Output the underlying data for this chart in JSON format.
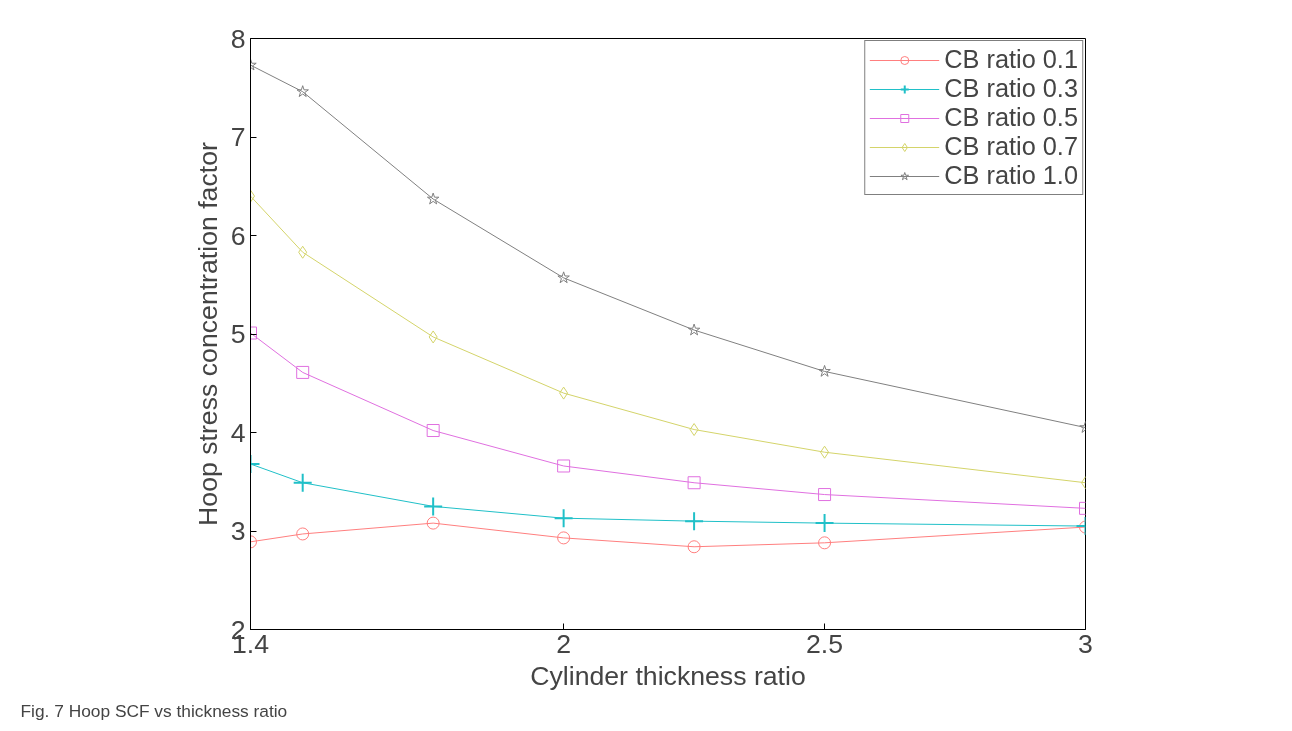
{
  "chart_data": {
    "type": "line",
    "xlabel": "Cylinder thickness ratio",
    "ylabel": "Hoop stress concentration factor",
    "x": [
      1.4,
      1.5,
      1.75,
      2.0,
      2.25,
      2.5,
      3.0
    ],
    "xlim": [
      1.4,
      3
    ],
    "xticks": [
      1.4,
      2,
      2.5,
      3
    ],
    "ylim": [
      2,
      8
    ],
    "yticks": [
      2,
      3,
      4,
      5,
      6,
      7,
      8
    ],
    "grid": false,
    "legend": "top right",
    "line_style": "solid",
    "series": [
      {
        "name": "CB ratio 0.1",
        "color": "#ff7f7f",
        "marker": "circle",
        "values": [
          2.89,
          2.97,
          3.08,
          2.93,
          2.84,
          2.88,
          3.04
        ]
      },
      {
        "name": "CB ratio 0.3",
        "color": "#20c0c8",
        "marker": "cross",
        "values": [
          3.68,
          3.49,
          3.25,
          3.13,
          3.1,
          3.08,
          3.05
        ]
      },
      {
        "name": "CB ratio 0.5",
        "color": "#e070e0",
        "marker": "square",
        "values": [
          5.01,
          4.61,
          4.02,
          3.66,
          3.49,
          3.37,
          3.23
        ]
      },
      {
        "name": "CB ratio 0.7",
        "color": "#d4d46a",
        "marker": "diamond",
        "values": [
          6.4,
          5.83,
          4.97,
          4.4,
          4.03,
          3.8,
          3.49
        ]
      },
      {
        "name": "CB ratio 1.0",
        "color": "#808080",
        "marker": "star",
        "values": [
          7.73,
          7.46,
          6.37,
          5.57,
          5.04,
          4.62,
          4.05
        ]
      }
    ],
    "annotations": [
      "Fig. 7 Hoop SCF vs thickness ratio"
    ]
  }
}
